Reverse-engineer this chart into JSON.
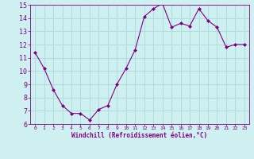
{
  "x": [
    0,
    1,
    2,
    3,
    4,
    5,
    6,
    7,
    8,
    9,
    10,
    11,
    12,
    13,
    14,
    15,
    16,
    17,
    18,
    19,
    20,
    21,
    22,
    23
  ],
  "y": [
    11.4,
    10.2,
    8.6,
    7.4,
    6.8,
    6.8,
    6.3,
    7.1,
    7.4,
    9.0,
    10.2,
    11.6,
    14.1,
    14.7,
    15.1,
    13.3,
    13.6,
    13.4,
    14.7,
    13.8,
    13.3,
    11.8,
    12.0,
    12.0
  ],
  "xlabel": "Windchill (Refroidissement éolien,°C)",
  "ylim": [
    6,
    15
  ],
  "yticks": [
    6,
    7,
    8,
    9,
    10,
    11,
    12,
    13,
    14,
    15
  ],
  "xticks": [
    0,
    1,
    2,
    3,
    4,
    5,
    6,
    7,
    8,
    9,
    10,
    11,
    12,
    13,
    14,
    15,
    16,
    17,
    18,
    19,
    20,
    21,
    22,
    23
  ],
  "xticklabels": [
    "0",
    "1",
    "2",
    "3",
    "4",
    "5",
    "6",
    "7",
    "8",
    "9",
    "10",
    "11",
    "12",
    "13",
    "14",
    "15",
    "16",
    "17",
    "18",
    "19",
    "20",
    "21",
    "22",
    "23"
  ],
  "line_color": "#800080",
  "marker": "D",
  "marker_size": 2.0,
  "bg_color": "#cff0f0",
  "grid_color": "#b0dede",
  "tick_color": "#800080",
  "label_color": "#800080",
  "spine_color": "#800080",
  "xlim": [
    -0.5,
    23.5
  ]
}
